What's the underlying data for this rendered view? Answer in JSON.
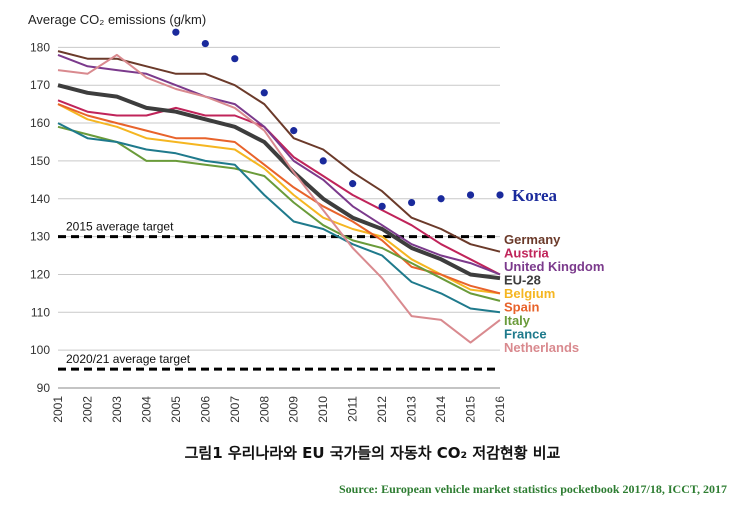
{
  "caption": "그림1 우리나라와 EU 국가들의 자동차 CO₂ 저감현황 비교",
  "source": "Source: European vehicle market statistics pocketbook 2017/18, ICCT,  2017",
  "chart_data": {
    "type": "line",
    "ylabel": "Average CO₂ emissions (g/km)",
    "ylim": [
      90,
      183
    ],
    "x": [
      2001,
      2002,
      2003,
      2004,
      2005,
      2006,
      2007,
      2008,
      2009,
      2010,
      2011,
      2012,
      2013,
      2014,
      2015,
      2016
    ],
    "yticks": [
      90,
      100,
      110,
      120,
      130,
      140,
      150,
      160,
      170,
      180
    ],
    "grid": "horizontal",
    "targets": [
      {
        "label": "2015 average target",
        "value": 130
      },
      {
        "label": "2020/21 average target",
        "value": 95
      }
    ],
    "series": [
      {
        "name": "Germany",
        "color": "#6b3a2a",
        "values": [
          179,
          177,
          177,
          175,
          173,
          173,
          170,
          165,
          156,
          153,
          147,
          142,
          135,
          132,
          128,
          126
        ]
      },
      {
        "name": "Austria",
        "color": "#c0245a",
        "values": [
          166,
          163,
          162,
          162,
          164,
          162,
          162,
          159,
          151,
          146,
          141,
          137,
          133,
          128,
          124,
          120
        ]
      },
      {
        "name": "United Kingdom",
        "color": "#7b3a8c",
        "values": [
          178,
          175,
          174,
          173,
          170,
          167,
          165,
          159,
          150,
          145,
          138,
          133,
          128,
          125,
          123,
          120
        ]
      },
      {
        "name": "EU-28",
        "color": "#3d3d3d",
        "values": [
          170,
          168,
          167,
          164,
          163,
          161,
          159,
          155,
          147,
          140,
          135,
          132,
          127,
          124,
          120,
          119
        ]
      },
      {
        "name": "Belgium",
        "color": "#f5b621",
        "values": [
          165,
          161,
          159,
          156,
          155,
          154,
          153,
          148,
          141,
          135,
          132,
          130,
          124,
          120,
          116,
          115
        ]
      },
      {
        "name": "Spain",
        "color": "#e8632b",
        "values": [
          165,
          162,
          160,
          158,
          156,
          156,
          155,
          149,
          143,
          138,
          134,
          129,
          122,
          120,
          117,
          115
        ]
      },
      {
        "name": "Italy",
        "color": "#6a9b3a",
        "values": [
          159,
          157,
          155,
          150,
          150,
          149,
          148,
          146,
          139,
          133,
          129,
          127,
          123,
          119,
          115,
          113
        ]
      },
      {
        "name": "France",
        "color": "#1f7a8c",
        "values": [
          160,
          156,
          155,
          153,
          152,
          150,
          149,
          141,
          134,
          132,
          128,
          125,
          118,
          115,
          111,
          110
        ]
      },
      {
        "name": "Netherlands",
        "color": "#d98a8f",
        "values": [
          174,
          173,
          178,
          172,
          169,
          167,
          164,
          158,
          147,
          137,
          127,
          119,
          109,
          108,
          102,
          108
        ]
      }
    ],
    "points": {
      "name": "Korea",
      "color": "#1a2a9c",
      "x": [
        2005,
        2006,
        2007,
        2008,
        2009,
        2010,
        2011,
        2012,
        2013,
        2014,
        2015,
        2016
      ],
      "y": [
        184,
        181,
        177,
        168,
        158,
        150,
        144,
        138,
        139,
        140,
        141,
        141
      ]
    }
  }
}
